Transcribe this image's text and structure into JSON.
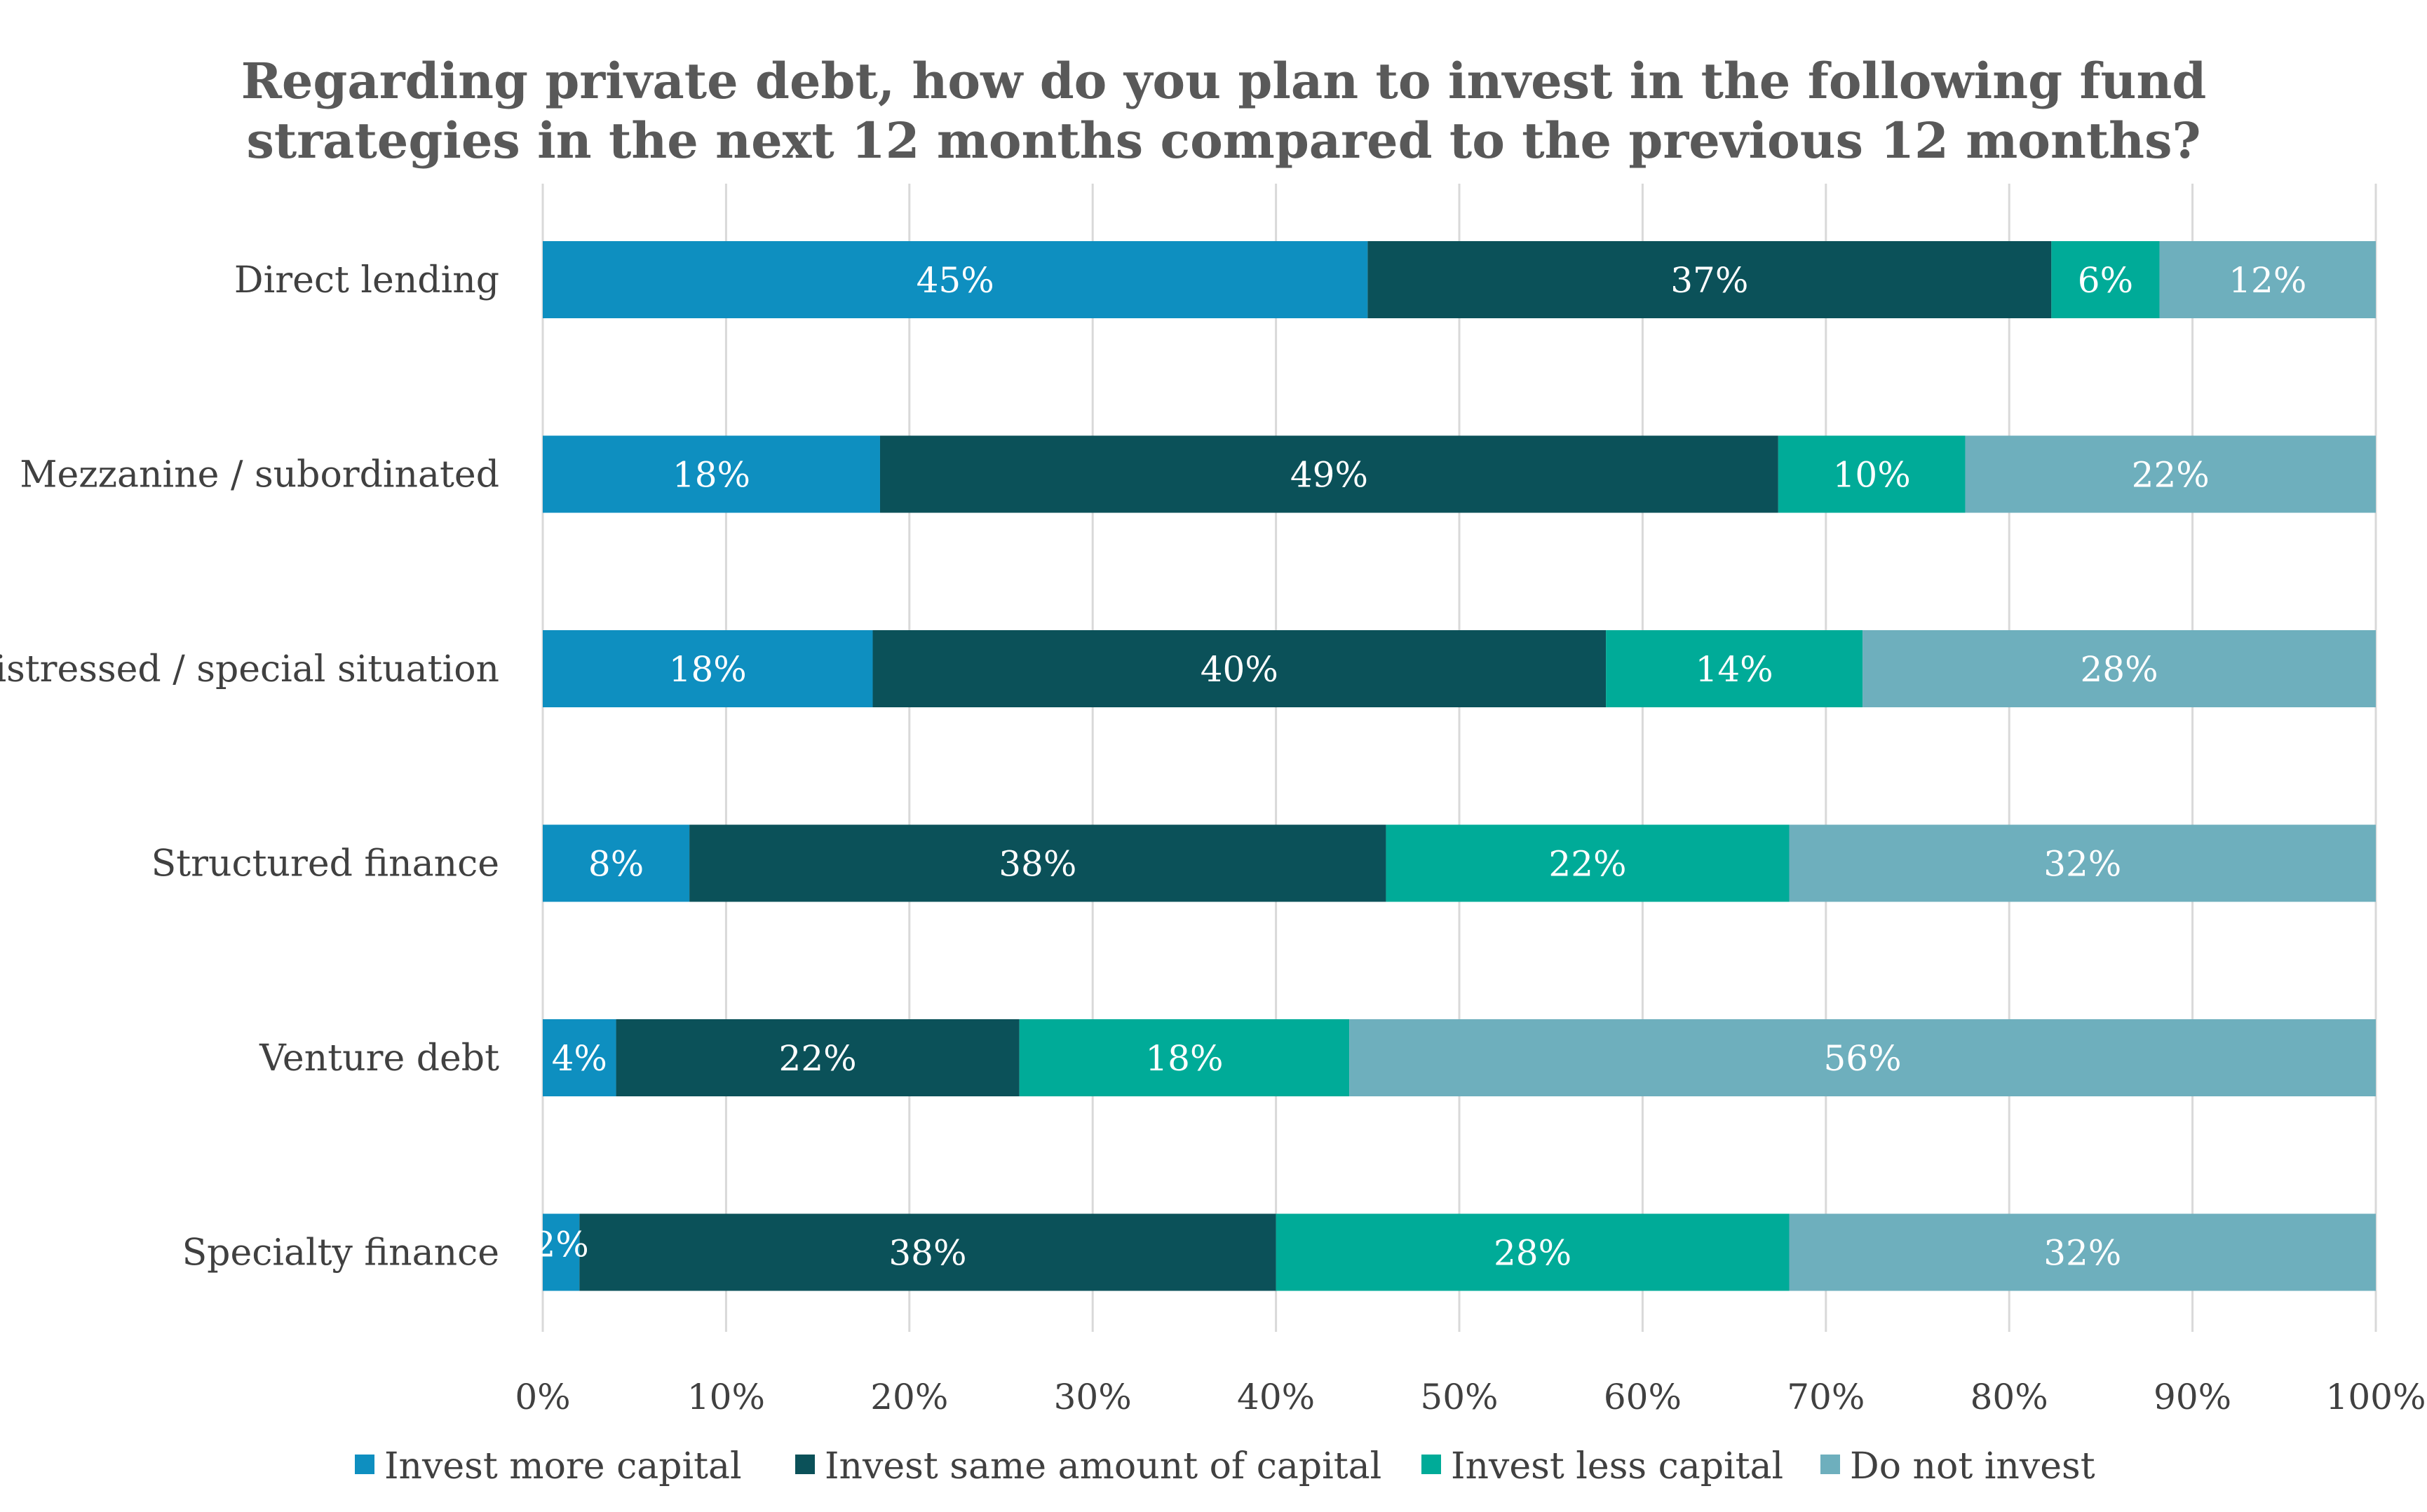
{
  "chart_data": {
    "type": "bar",
    "orientation": "horizontal",
    "stacked": true,
    "title": "Regarding private debt, how do you plan to invest in the following fund strategies in the next 12 months compared to the previous 12 months?",
    "title_lines": [
      "Regarding private debt, how do you plan to invest in the following fund",
      "strategies in the next 12 months compared to the previous 12 months?"
    ],
    "categories": [
      "Direct lending",
      "Mezzanine / subordinated",
      "Distressed / special situation",
      "Structured finance",
      "Venture debt",
      "Specialty finance"
    ],
    "series": [
      {
        "name": "Invest more capital",
        "color": "#0e8fc0",
        "values": [
          45,
          18.4,
          18,
          8,
          4,
          2
        ],
        "labels": [
          "45%",
          "18%",
          "18%",
          "8%",
          "4%",
          "2%"
        ]
      },
      {
        "name": "Invest same amount of capital",
        "color": "#0b5159",
        "values": [
          37.3,
          49,
          40,
          38,
          22,
          38
        ],
        "labels": [
          "37%",
          "49%",
          "40%",
          "38%",
          "22%",
          "38%"
        ]
      },
      {
        "name": "Invest less capital",
        "color": "#00ab98",
        "values": [
          5.9,
          10.2,
          14,
          22,
          18,
          28
        ],
        "labels": [
          "6%",
          "10%",
          "14%",
          "22%",
          "18%",
          "28%"
        ]
      },
      {
        "name": "Do not invest",
        "color": "#6eafbd",
        "values": [
          11.8,
          22.4,
          28,
          32,
          56,
          32
        ],
        "labels": [
          "12%",
          "22%",
          "28%",
          "32%",
          "56%",
          "32%"
        ]
      }
    ],
    "xlim": [
      0,
      100
    ],
    "xticks": [
      0,
      10,
      20,
      30,
      40,
      50,
      60,
      70,
      80,
      90,
      100
    ],
    "xtick_labels": [
      "0%",
      "10%",
      "20%",
      "30%",
      "40%",
      "50%",
      "60%",
      "70%",
      "80%",
      "90%",
      "100%"
    ],
    "grid": true,
    "legend_position": "bottom"
  }
}
